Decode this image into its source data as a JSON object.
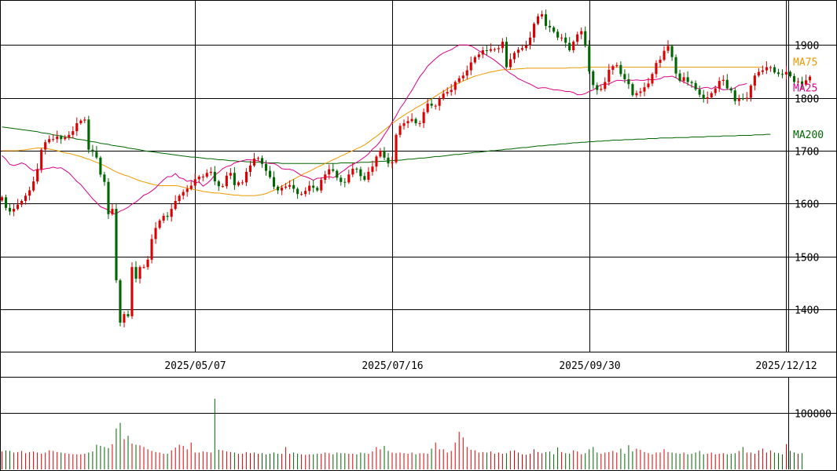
{
  "chart_data": {
    "type": "candlestick",
    "price_axis": {
      "ticks": [
        1400,
        1500,
        1600,
        1700,
        1800,
        1900
      ],
      "tick_labels": [
        "1400",
        "1500",
        "1600",
        "1700",
        "1800",
        "1900"
      ],
      "range": [
        1320,
        1985
      ]
    },
    "volume_axis": {
      "ticks": [
        100000
      ],
      "tick_labels": [
        "100000"
      ],
      "range": [
        0,
        165000
      ]
    },
    "date_labels": [
      "2025/05/07",
      "2025/07/16",
      "2025/09/30",
      "2025/12/12"
    ],
    "date_label_indices": [
      49,
      99,
      149,
      199
    ],
    "bar_count": 200,
    "colors": {
      "up": "#dd0000",
      "down": "#006600",
      "ma25": "#dd0088",
      "ma75": "#ee9900",
      "ma200": "#006600",
      "grid": "#000000"
    },
    "legend": [
      {
        "label": "MA75",
        "color": "#ee9900",
        "value": 1858
      },
      {
        "label": "MA25",
        "color": "#dd0088",
        "value": 1827
      },
      {
        "label": "MA200",
        "color": "#006600",
        "value": 1731
      }
    ],
    "closes": [
      1612,
      1592,
      1585,
      1590,
      1598,
      1605,
      1615,
      1625,
      1642,
      1665,
      1702,
      1716,
      1722,
      1722,
      1727,
      1722,
      1725,
      1730,
      1737,
      1752,
      1757,
      1759,
      1702,
      1698,
      1687,
      1655,
      1641,
      1580,
      1590,
      1455,
      1375,
      1391,
      1387,
      1480,
      1458,
      1480,
      1480,
      1494,
      1533,
      1554,
      1568,
      1577,
      1575,
      1590,
      1605,
      1615,
      1622,
      1628,
      1634,
      1646,
      1651,
      1651,
      1658,
      1660,
      1642,
      1633,
      1633,
      1653,
      1658,
      1635,
      1640,
      1640,
      1660,
      1672,
      1685,
      1686,
      1675,
      1662,
      1650,
      1632,
      1625,
      1630,
      1632,
      1635,
      1628,
      1618,
      1618,
      1624,
      1634,
      1630,
      1625,
      1645,
      1655,
      1665,
      1662,
      1649,
      1641,
      1640,
      1655,
      1666,
      1665,
      1652,
      1645,
      1660,
      1670,
      1689,
      1700,
      1687,
      1676,
      1678,
      1730,
      1747,
      1752,
      1756,
      1760,
      1752,
      1752,
      1773,
      1789,
      1785,
      1785,
      1798,
      1808,
      1811,
      1815,
      1830,
      1837,
      1842,
      1852,
      1867,
      1877,
      1882,
      1890,
      1889,
      1892,
      1892,
      1894,
      1906,
      1858,
      1873,
      1885,
      1891,
      1894,
      1899,
      1914,
      1940,
      1954,
      1958,
      1936,
      1933,
      1925,
      1914,
      1914,
      1904,
      1890,
      1906,
      1920,
      1926,
      1898,
      1850,
      1824,
      1815,
      1817,
      1830,
      1853,
      1860,
      1862,
      1845,
      1835,
      1826,
      1805,
      1809,
      1812,
      1820,
      1827,
      1845,
      1866,
      1872,
      1889,
      1898,
      1877,
      1846,
      1832,
      1839,
      1830,
      1828,
      1816,
      1806,
      1798,
      1801,
      1809,
      1818,
      1832,
      1834,
      1818,
      1814,
      1794,
      1799,
      1798,
      1800,
      1823,
      1842,
      1849,
      1852,
      1858,
      1858,
      1848,
      1845,
      1844,
      1849,
      1841,
      1830,
      1831,
      1825,
      1833,
      1840
    ],
    "ma25": [
      1691,
      1684,
      1674,
      1672,
      1674,
      1677,
      1674,
      1667,
      1662,
      1665,
      1664,
      1666,
      1667,
      1669,
      1667,
      1668,
      1663,
      1658,
      1650,
      1642,
      1636,
      1627,
      1618,
      1609,
      1602,
      1594,
      1591,
      1588,
      1581,
      1581,
      1586,
      1589,
      1593,
      1599,
      1603,
      1609,
      1616,
      1619,
      1624,
      1630,
      1638,
      1645,
      1651,
      1651,
      1657,
      1649,
      1647,
      1642,
      1644,
      1639,
      1641,
      1633,
      1638,
      1645,
      1654,
      1659,
      1666,
      1670,
      1672,
      1677,
      1679,
      1681,
      1683,
      1683,
      1682,
      1681,
      1678,
      1677,
      1676,
      1676,
      1672,
      1666,
      1665,
      1665,
      1663,
      1658,
      1653,
      1651,
      1648,
      1644,
      1648,
      1648,
      1650,
      1651,
      1649,
      1653,
      1659,
      1664,
      1670,
      1674,
      1678,
      1683,
      1688,
      1694,
      1703,
      1709,
      1718,
      1730,
      1741,
      1754,
      1766,
      1780,
      1790,
      1803,
      1814,
      1827,
      1840,
      1849,
      1860,
      1867,
      1874,
      1880,
      1885,
      1888,
      1891,
      1896,
      1900,
      1900,
      1900,
      1898,
      1894,
      1889,
      1885,
      1880,
      1876,
      1871,
      1865,
      1859,
      1852,
      1846,
      1842,
      1836,
      1833,
      1829,
      1826,
      1822,
      1818,
      1819,
      1819,
      1817,
      1815,
      1815,
      1814,
      1812,
      1812,
      1810,
      1806,
      1806,
      1808,
      1812,
      1815,
      1820,
      1825,
      1826,
      1826,
      1830,
      1833,
      1833,
      1832,
      1834,
      1833,
      1834,
      1833,
      1833,
      1835,
      1834,
      1835,
      1836,
      1840,
      1840,
      1841,
      1838,
      1833,
      1830,
      1826,
      1822,
      1819,
      1817,
      1819,
      1820,
      1817,
      1821,
      1818,
      1815,
      1816,
      1816,
      1819,
      1824,
      1825,
      1827
    ],
    "ma75": [
      1700,
      1700,
      1700,
      1700,
      1700,
      1701,
      1702,
      1703,
      1704,
      1705,
      1705,
      1705,
      1703,
      1702,
      1700,
      1698,
      1696,
      1695,
      1693,
      1691,
      1689,
      1686,
      1684,
      1681,
      1678,
      1675,
      1672,
      1668,
      1664,
      1660,
      1657,
      1654,
      1652,
      1649,
      1646,
      1643,
      1641,
      1639,
      1637,
      1635,
      1634,
      1634,
      1634,
      1634,
      1634,
      1633,
      1631,
      1629,
      1628,
      1626,
      1625,
      1623,
      1622,
      1621,
      1620,
      1620,
      1619,
      1618,
      1617,
      1616,
      1616,
      1615,
      1615,
      1615,
      1615,
      1616,
      1617,
      1619,
      1622,
      1625,
      1629,
      1633,
      1637,
      1642,
      1646,
      1650,
      1654,
      1658,
      1661,
      1665,
      1669,
      1672,
      1676,
      1679,
      1683,
      1686,
      1690,
      1693,
      1697,
      1700,
      1704,
      1707,
      1711,
      1716,
      1722,
      1727,
      1733,
      1739,
      1745,
      1751,
      1757,
      1762,
      1767,
      1772,
      1776,
      1781,
      1785,
      1789,
      1794,
      1798,
      1803,
      1808,
      1812,
      1817,
      1821,
      1825,
      1828,
      1832,
      1835,
      1838,
      1841,
      1843,
      1845,
      1847,
      1849,
      1850,
      1852,
      1853,
      1853,
      1854,
      1854,
      1855,
      1855,
      1856,
      1856,
      1856,
      1856,
      1856,
      1856,
      1856,
      1856,
      1856,
      1856,
      1856,
      1857,
      1857,
      1857,
      1857,
      1858,
      1858,
      1858,
      1858,
      1858,
      1858,
      1858,
      1858,
      1858,
      1858,
      1858,
      1858,
      1858,
      1858,
      1858,
      1858,
      1858,
      1858,
      1858,
      1858,
      1858,
      1858,
      1858,
      1858,
      1858,
      1858,
      1858,
      1858,
      1858,
      1858,
      1858,
      1858,
      1858,
      1858,
      1858,
      1858,
      1858,
      1858,
      1858,
      1858,
      1858,
      1858,
      1858,
      1858,
      1858,
      1858
    ],
    "ma200": [
      1745,
      1744,
      1743,
      1742,
      1741,
      1740,
      1739,
      1738,
      1737,
      1736,
      1734,
      1733,
      1732,
      1730,
      1729,
      1728,
      1726,
      1725,
      1724,
      1722,
      1721,
      1720,
      1718,
      1717,
      1716,
      1714,
      1713,
      1712,
      1710,
      1709,
      1708,
      1707,
      1705,
      1704,
      1703,
      1702,
      1700,
      1699,
      1698,
      1697,
      1696,
      1695,
      1694,
      1693,
      1692,
      1691,
      1690,
      1689,
      1688,
      1688,
      1687,
      1686,
      1685,
      1685,
      1684,
      1683,
      1683,
      1682,
      1681,
      1681,
      1680,
      1680,
      1679,
      1679,
      1678,
      1678,
      1678,
      1677,
      1677,
      1677,
      1677,
      1676,
      1676,
      1676,
      1676,
      1676,
      1676,
      1676,
      1676,
      1676,
      1676,
      1676,
      1676,
      1676,
      1676,
      1676,
      1677,
      1677,
      1677,
      1677,
      1677,
      1678,
      1678,
      1678,
      1679,
      1679,
      1680,
      1680,
      1681,
      1681,
      1682,
      1682,
      1683,
      1684,
      1684,
      1685,
      1686,
      1686,
      1687,
      1688,
      1689,
      1689,
      1690,
      1691,
      1692,
      1693,
      1693,
      1694,
      1695,
      1696,
      1697,
      1697,
      1698,
      1699,
      1700,
      1700,
      1701,
      1702,
      1703,
      1703,
      1704,
      1705,
      1706,
      1706,
      1707,
      1708,
      1709,
      1709,
      1710,
      1711,
      1711,
      1712,
      1713,
      1713,
      1714,
      1715,
      1715,
      1716,
      1716,
      1717,
      1717,
      1718,
      1718,
      1719,
      1719,
      1720,
      1720,
      1720,
      1721,
      1721,
      1721,
      1722,
      1722,
      1722,
      1723,
      1723,
      1723,
      1724,
      1724,
      1724,
      1724,
      1725,
      1725,
      1725,
      1725,
      1726,
      1726,
      1726,
      1726,
      1727,
      1727,
      1727,
      1727,
      1728,
      1728,
      1728,
      1728,
      1729,
      1729,
      1729,
      1729,
      1730,
      1730,
      1730,
      1731,
      1731
    ],
    "volumes": [
      32000,
      34000,
      33000,
      30000,
      31000,
      33000,
      29000,
      31000,
      32000,
      30000,
      28000,
      30000,
      34000,
      33000,
      31000,
      30000,
      29000,
      28000,
      27000,
      27000,
      27000,
      28000,
      30000,
      32000,
      44000,
      42000,
      40000,
      38000,
      45000,
      73000,
      83000,
      54000,
      60000,
      46000,
      44000,
      43000,
      40000,
      36000,
      33000,
      31000,
      30000,
      28000,
      28000,
      34000,
      39000,
      44000,
      42000,
      36000,
      48000,
      30000,
      30000,
      32000,
      31000,
      30000,
      126000,
      35000,
      34000,
      32000,
      31000,
      30000,
      28000,
      28000,
      31000,
      29000,
      30000,
      28000,
      29000,
      27000,
      28000,
      30000,
      28000,
      28000,
      40000,
      28000,
      30000,
      28000,
      27000,
      26000,
      27000,
      27000,
      28000,
      28000,
      30000,
      29000,
      27000,
      30000,
      29000,
      29000,
      28000,
      28000,
      27000,
      30000,
      29000,
      28000,
      32000,
      40000,
      36000,
      42000,
      33000,
      30000,
      29000,
      30000,
      29000,
      28000,
      30000,
      27000,
      29000,
      29000,
      28000,
      37000,
      48000,
      36000,
      36000,
      30000,
      33000,
      48000,
      67000,
      57000,
      40000,
      35000,
      34000,
      30000,
      31000,
      30000,
      32000,
      28000,
      30000,
      28000,
      29000,
      33000,
      34000,
      30000,
      27000,
      26000,
      28000,
      36000,
      31000,
      29000,
      31000,
      32000,
      27000,
      39000,
      31000,
      29000,
      28000,
      34000,
      32000,
      27000,
      29000,
      36000,
      40000,
      30000,
      28000,
      30000,
      31000,
      33000,
      30000,
      37000,
      28000,
      43000,
      32000,
      37000,
      35000,
      31000,
      29000,
      27000,
      30000,
      30000,
      36000,
      31000,
      30000,
      29000,
      28000,
      30000,
      27000,
      28000,
      30000,
      33000,
      27000,
      28000,
      30000,
      27000,
      28000,
      29000,
      27000,
      28000,
      29000,
      33000,
      40000,
      30000,
      30000,
      28000,
      34000,
      37000,
      30000,
      34000,
      30000,
      29000,
      27000,
      45000,
      33000,
      30000,
      28000,
      29000
    ]
  }
}
